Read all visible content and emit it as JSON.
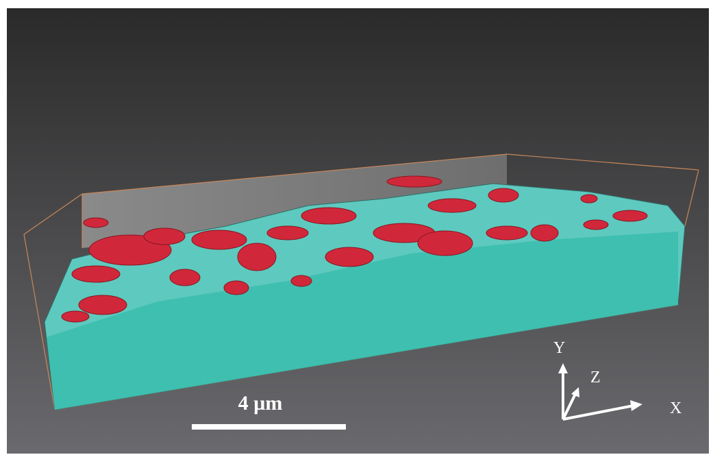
{
  "scale_bar": {
    "label": "4 µm"
  },
  "axes": {
    "y": "Y",
    "z": "Z",
    "x": "X"
  }
}
